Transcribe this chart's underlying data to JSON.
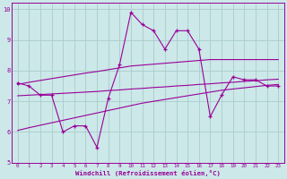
{
  "x": [
    0,
    1,
    2,
    3,
    4,
    5,
    6,
    7,
    8,
    9,
    10,
    11,
    12,
    13,
    14,
    15,
    16,
    17,
    18,
    19,
    20,
    21,
    22,
    23
  ],
  "windchill": [
    7.6,
    7.5,
    7.2,
    7.2,
    6.0,
    6.2,
    6.2,
    5.5,
    7.1,
    8.2,
    9.9,
    9.5,
    9.3,
    8.7,
    9.3,
    9.3,
    8.7,
    6.5,
    7.2,
    7.8,
    7.7,
    7.7,
    7.5,
    7.5
  ],
  "reg_upper": [
    7.55,
    7.62,
    7.68,
    7.74,
    7.8,
    7.86,
    7.92,
    7.97,
    8.03,
    8.09,
    8.15,
    8.18,
    8.21,
    8.24,
    8.27,
    8.3,
    8.33,
    8.36,
    8.36,
    8.36,
    8.36,
    8.36,
    8.36,
    8.36
  ],
  "reg_mid": [
    7.18,
    7.2,
    7.22,
    7.24,
    7.26,
    7.28,
    7.3,
    7.32,
    7.35,
    7.37,
    7.4,
    7.42,
    7.45,
    7.47,
    7.5,
    7.52,
    7.55,
    7.57,
    7.6,
    7.62,
    7.65,
    7.67,
    7.7,
    7.72
  ],
  "reg_lower": [
    6.05,
    6.14,
    6.22,
    6.3,
    6.38,
    6.46,
    6.54,
    6.62,
    6.7,
    6.78,
    6.86,
    6.94,
    7.0,
    7.06,
    7.12,
    7.18,
    7.24,
    7.3,
    7.36,
    7.4,
    7.44,
    7.48,
    7.52,
    7.55
  ],
  "line_color": "#990099",
  "bg_color": "#cce8e8",
  "grid_color": "#aacccc",
  "xlabel": "Windchill (Refroidissement éolien,°C)",
  "xlim": [
    -0.5,
    23.5
  ],
  "ylim": [
    5,
    10.2
  ],
  "yticks": [
    5,
    6,
    7,
    8,
    9,
    10
  ],
  "xticks": [
    0,
    1,
    2,
    3,
    4,
    5,
    6,
    7,
    8,
    9,
    10,
    11,
    12,
    13,
    14,
    15,
    16,
    17,
    18,
    19,
    20,
    21,
    22,
    23
  ]
}
